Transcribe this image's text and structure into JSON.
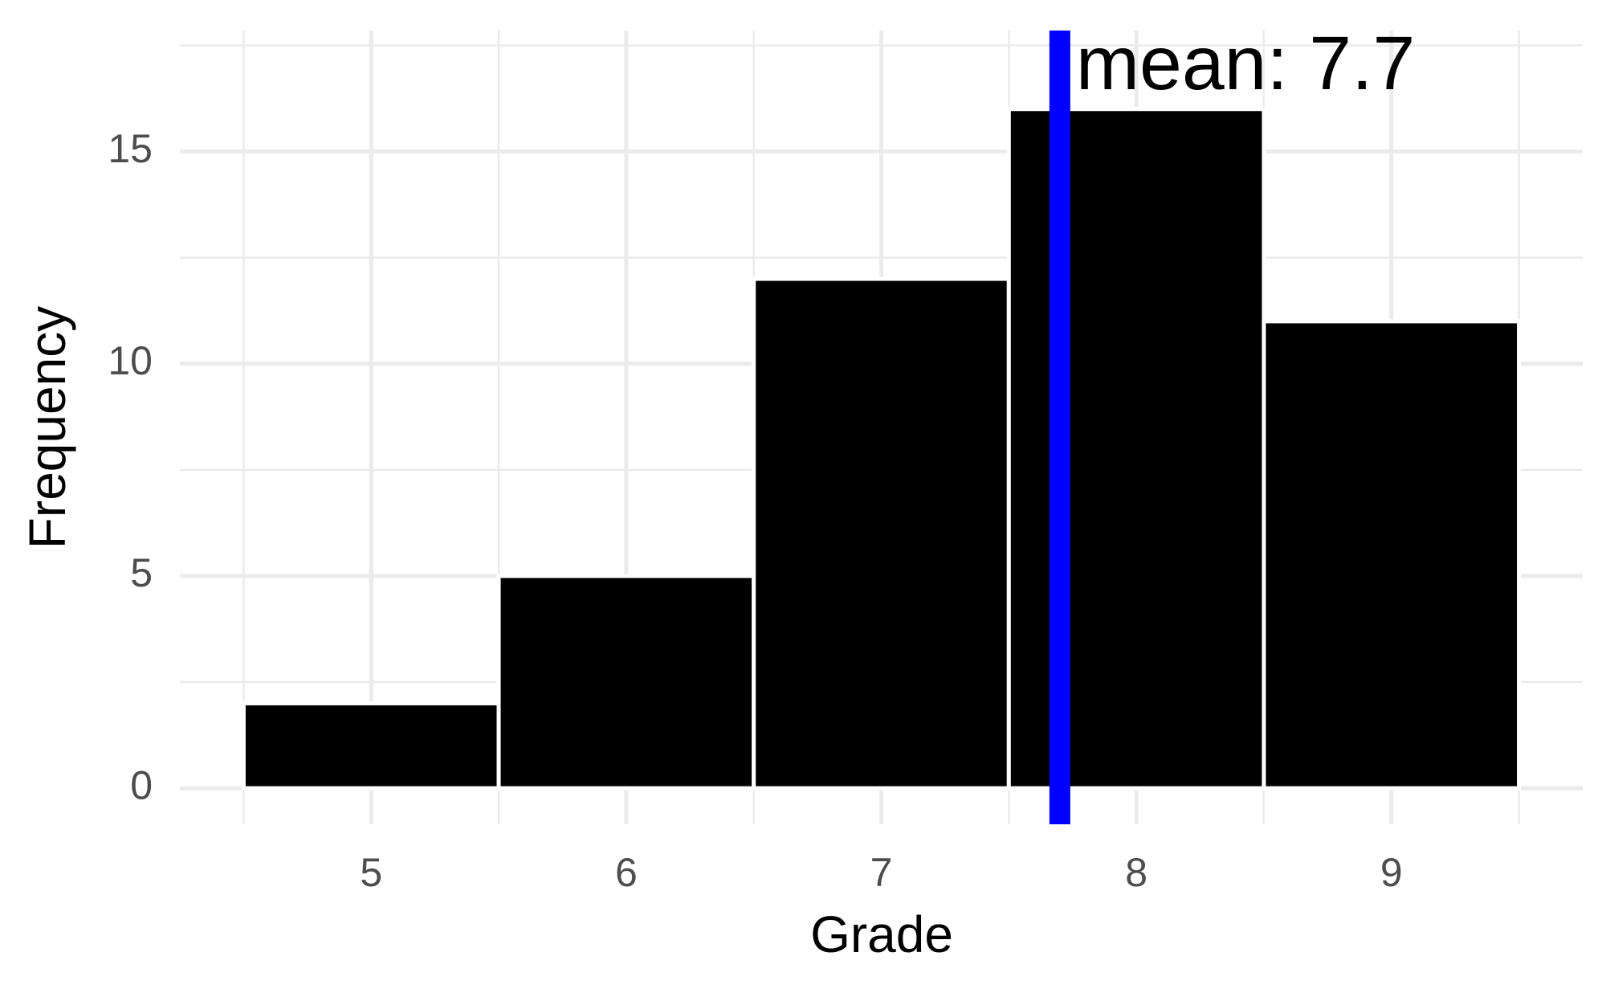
{
  "chart_data": {
    "type": "histogram",
    "x_label": "Grade",
    "y_label": "Frequency",
    "bins": [
      4.5,
      5.5,
      6.5,
      7.5,
      8.5,
      9.5
    ],
    "values": [
      2,
      5,
      12,
      16,
      11
    ],
    "color": "#000000",
    "edge_color": "#ffffff",
    "xlim": [
      4.25,
      9.75
    ],
    "ylim": [
      -0.85,
      17.85
    ],
    "xticks": [
      5,
      6,
      7,
      8,
      9
    ],
    "yticks": [
      0,
      5,
      10,
      15
    ],
    "xminor": [
      4.5,
      5.5,
      6.5,
      7.5,
      8.5,
      9.5
    ],
    "yminor": [
      2.5,
      7.5,
      12.5,
      17.5
    ],
    "grid": true,
    "mean_line": {
      "value": 7.7,
      "label": "mean: 7.7",
      "color": "#0000ff"
    }
  }
}
